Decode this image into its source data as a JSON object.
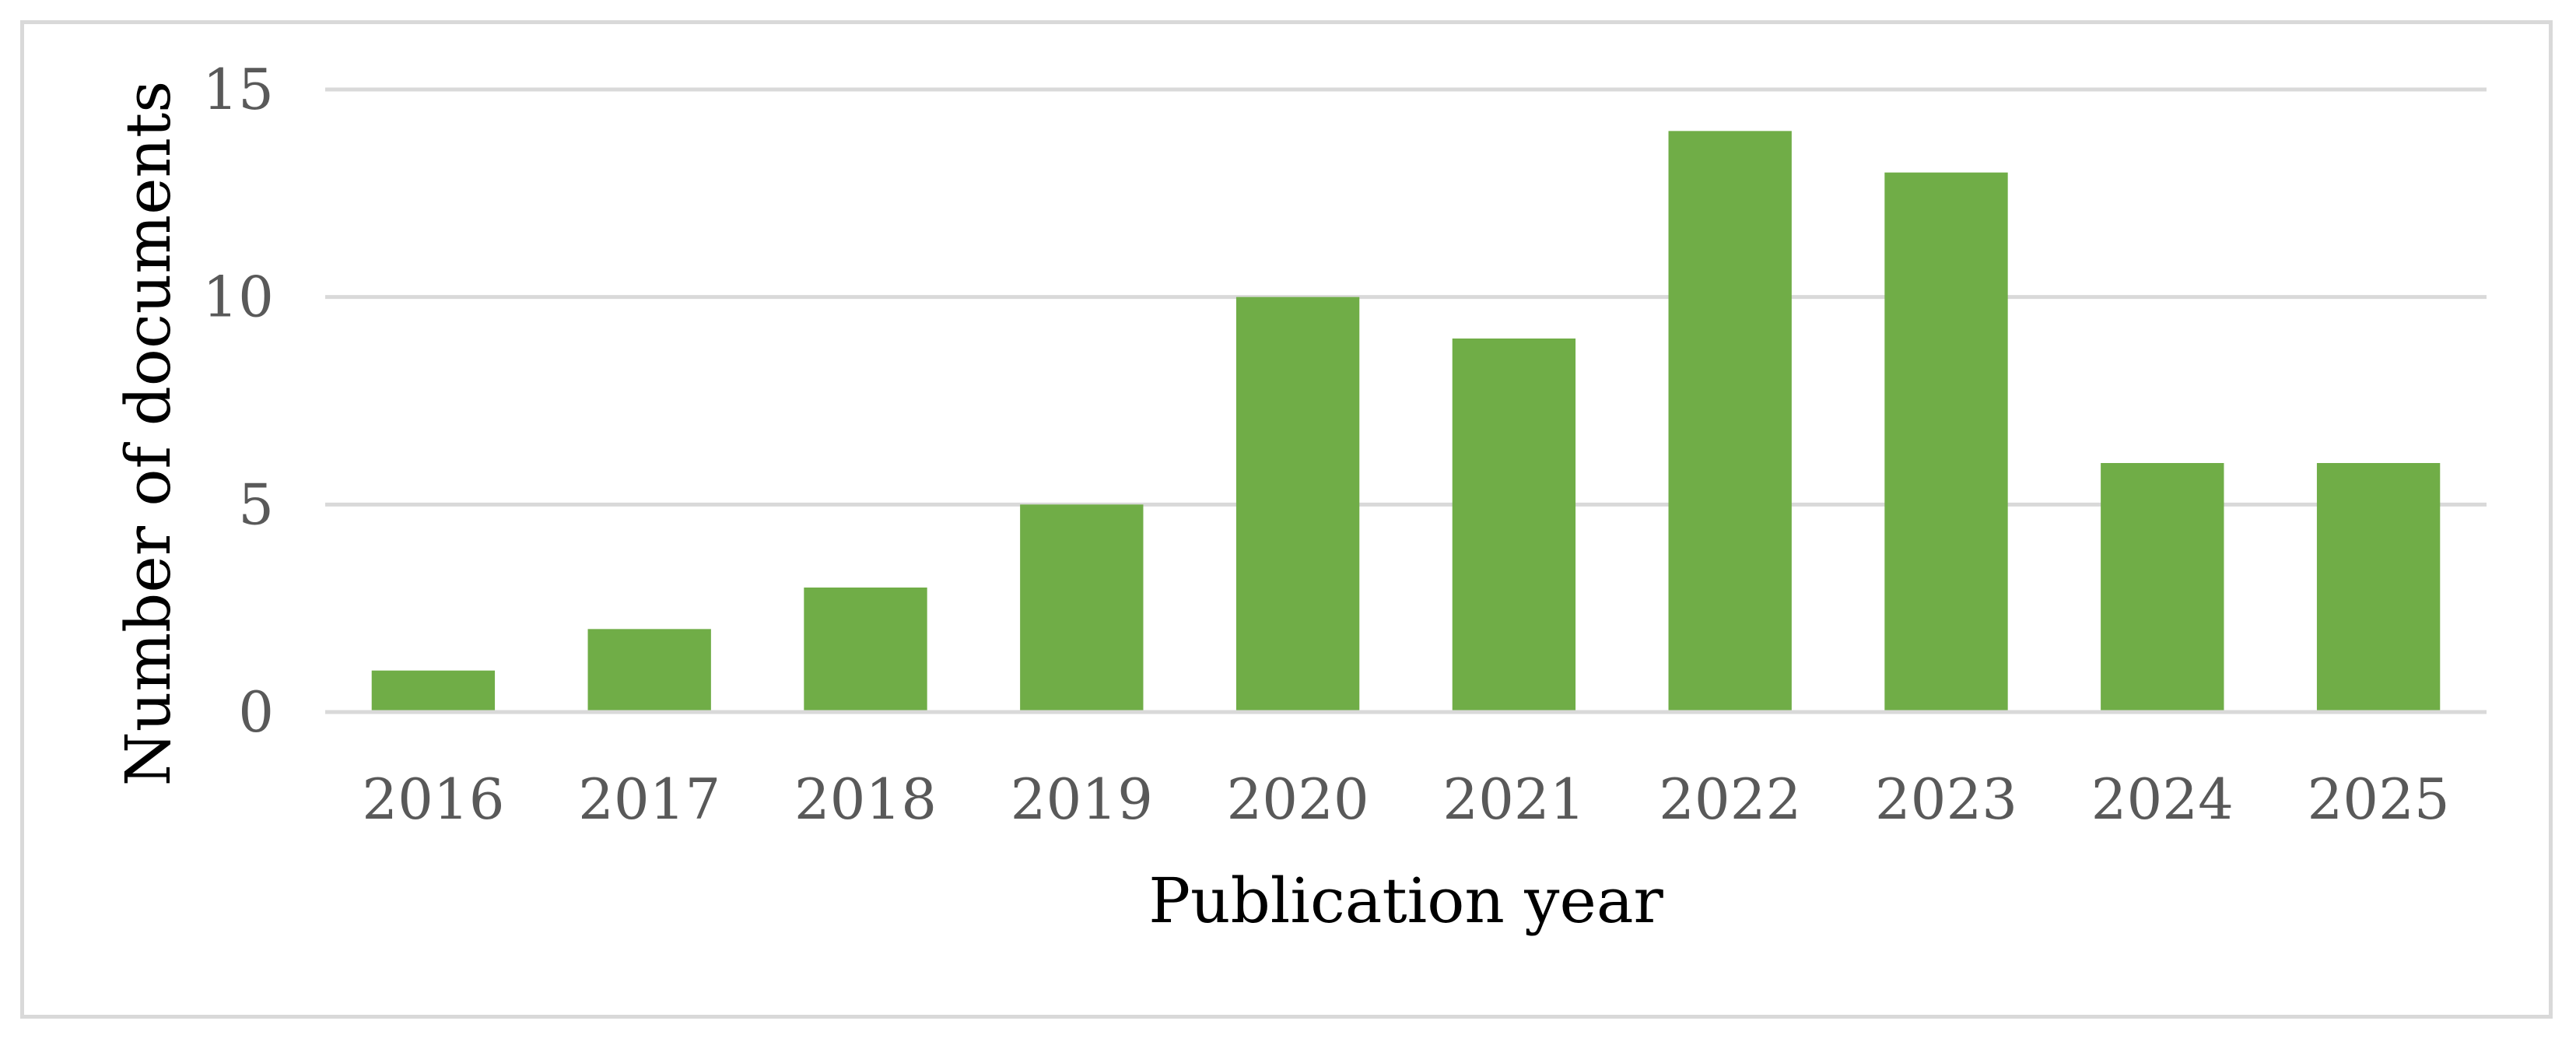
{
  "chart_data": {
    "type": "bar",
    "title": "",
    "xlabel": "Publication year",
    "ylabel": "Number of documents",
    "categories": [
      "2016",
      "2017",
      "2018",
      "2019",
      "2020",
      "2021",
      "2022",
      "2023",
      "2024",
      "2025"
    ],
    "values": [
      1,
      2,
      3,
      5,
      10,
      9,
      14,
      13,
      6,
      6
    ],
    "ylim": [
      0,
      15
    ],
    "yticks": [
      "0",
      "5",
      "10",
      "15"
    ],
    "grid": true,
    "legend": "none",
    "bar_color": "#70ad47",
    "grid_color": "#d9d9d9"
  }
}
